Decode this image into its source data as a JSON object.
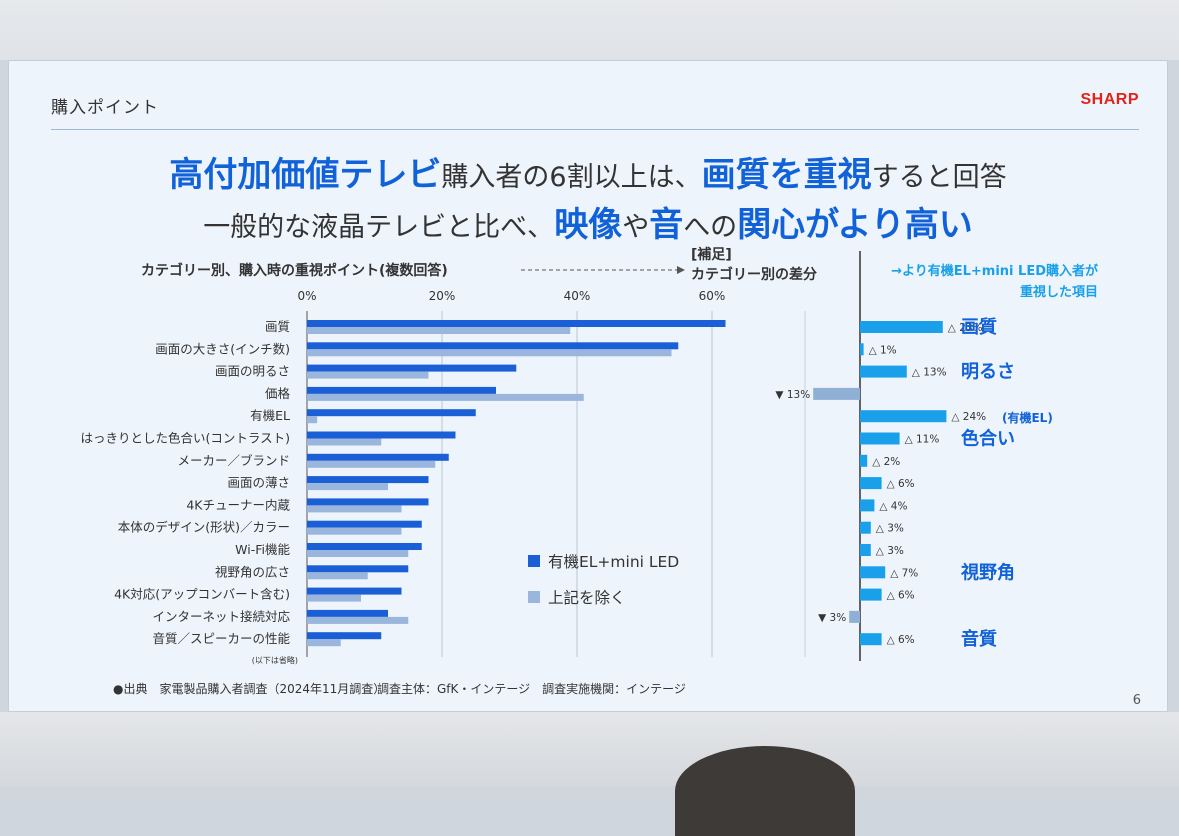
{
  "slide": {
    "section_title": "購入ポイント",
    "logo": "SHARP",
    "headline1": {
      "em1": "高付加価値テレビ",
      "t1": "購入者の6割以上は、",
      "em2": "画質を重視",
      "t2": "すると回答"
    },
    "headline2": {
      "t1": "一般的な液晶テレビと比べ、",
      "em1": "映像",
      "t2": "や",
      "em2": "音",
      "t3": "への",
      "em3": "関心がより高い"
    },
    "source_note": "●出典　家電製品購入者調査（2024年11月調査）",
    "survey_note": "調査主体：GfK・インテージ　調査実施機関：インテージ",
    "page_number": "6"
  },
  "chart_data": [
    {
      "type": "bar",
      "title": "カテゴリー別、購入時の重視ポイント(複数回答)",
      "categories": [
        "画質",
        "画面の大きさ(インチ数)",
        "画面の明るさ",
        "価格",
        "有機EL",
        "はっきりとした色合い(コントラスト)",
        "メーカー／ブランド",
        "画面の薄さ",
        "4Kチューナー内蔵",
        "本体のデザイン(形状)／カラー",
        "Wi-Fi機能",
        "視野角の広さ",
        "4K対応(アップコンバート含む)",
        "インターネット接続対応",
        "音質／スピーカーの性能"
      ],
      "series": [
        {
          "name": "有機EL+mini LED",
          "color": "#1a5fd6",
          "values": [
            62,
            55,
            31,
            28,
            25,
            22,
            21,
            18,
            18,
            17,
            17,
            15,
            14,
            12,
            11
          ]
        },
        {
          "name": "上記を除く",
          "color": "#9ab6dc",
          "values": [
            39,
            54,
            18,
            41,
            1.5,
            11,
            19,
            12,
            14,
            14,
            15,
            9,
            8,
            15,
            5
          ]
        }
      ],
      "x_ticks": [
        "0%",
        "20%",
        "40%",
        "60%"
      ],
      "xlim": [
        0,
        65
      ],
      "omitted_note": "(以下は省略)",
      "legend_position": "bottom-right"
    },
    {
      "type": "bar",
      "title": "[補足]\nカテゴリー別の差分",
      "subtitle": "→より有機EL+mini LED購入者が\n重視した項目",
      "categories": [
        "画質",
        "画面の大きさ(インチ数)",
        "画面の明るさ",
        "価格",
        "有機EL",
        "はっきりとした色合い(コントラスト)",
        "メーカー／ブランド",
        "画面の薄さ",
        "4Kチューナー内蔵",
        "本体のデザイン(形状)／カラー",
        "Wi-Fi機能",
        "視野角の広さ",
        "4K対応(アップコンバート含む)",
        "インターネット接続対応",
        "音質／スピーカーの性能"
      ],
      "values": [
        23,
        1,
        13,
        -13,
        24,
        11,
        2,
        6,
        4,
        3,
        3,
        7,
        6,
        -3,
        6
      ],
      "value_labels": [
        "△ 23%",
        "△ 1%",
        "△ 13%",
        "▼ 13%",
        "△ 24%",
        "△ 11%",
        "△ 2%",
        "△ 6%",
        "△ 4%",
        "△ 3%",
        "△ 3%",
        "△ 7%",
        "△ 6%",
        "▼ 3%",
        "△ 6%"
      ],
      "callouts": [
        "画質",
        "",
        "明るさ",
        "",
        "(有機EL)",
        "色合い",
        "",
        "",
        "",
        "",
        "",
        "視野角",
        "",
        "",
        "音質"
      ],
      "positive_color": "#1aa0ea",
      "negative_color": "#8fb0d4"
    }
  ]
}
